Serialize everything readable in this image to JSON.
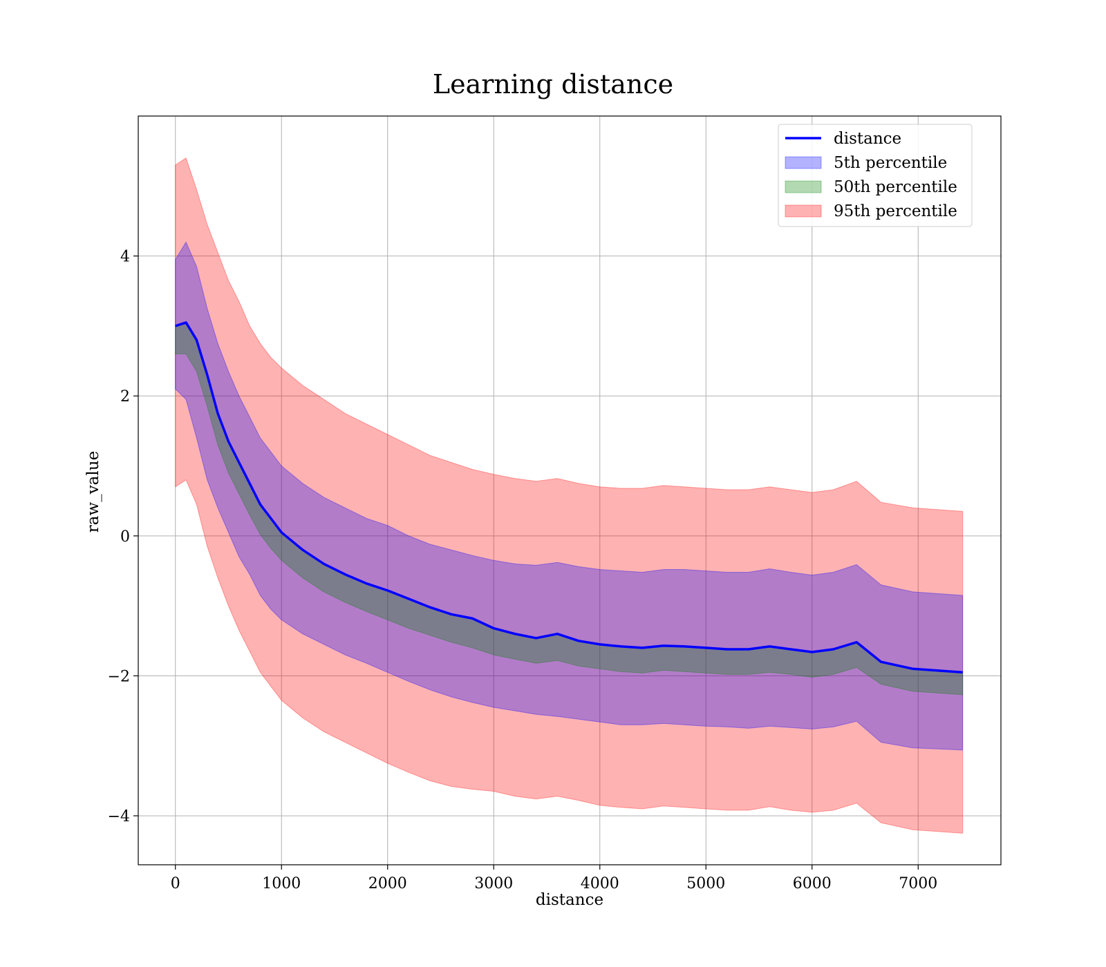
{
  "chart_data": {
    "type": "line",
    "title": "Learning distance",
    "xlabel": "distance",
    "ylabel": "raw_value",
    "xlim": [
      -350,
      7780
    ],
    "ylim": [
      -4.7,
      6.0
    ],
    "xticks": [
      0,
      1000,
      2000,
      3000,
      4000,
      5000,
      6000,
      7000
    ],
    "yticks": [
      -4,
      -2,
      0,
      2,
      4
    ],
    "xtick_labels": [
      "0",
      "1000",
      "2000",
      "3000",
      "4000",
      "5000",
      "6000",
      "7000"
    ],
    "ytick_labels": [
      "−4",
      "−2",
      "0",
      "2",
      "4"
    ],
    "grid": true,
    "legend_position": "top-right",
    "x": [
      0,
      100,
      200,
      300,
      400,
      500,
      600,
      700,
      800,
      900,
      1000,
      1200,
      1400,
      1600,
      1800,
      2000,
      2200,
      2400,
      2600,
      2800,
      3000,
      3200,
      3400,
      3600,
      3800,
      4000,
      4200,
      4400,
      4600,
      4800,
      5000,
      5200,
      5400,
      5600,
      5800,
      6000,
      6200,
      6420,
      6650,
      6950,
      7420
    ],
    "series": [
      {
        "name": "distance",
        "kind": "line",
        "color": "#0000ff",
        "values": [
          3.0,
          3.05,
          2.8,
          2.3,
          1.75,
          1.35,
          1.05,
          0.75,
          0.45,
          0.25,
          0.05,
          -0.2,
          -0.4,
          -0.55,
          -0.68,
          -0.78,
          -0.9,
          -1.02,
          -1.12,
          -1.18,
          -1.32,
          -1.4,
          -1.46,
          -1.4,
          -1.5,
          -1.55,
          -1.58,
          -1.6,
          -1.57,
          -1.58,
          -1.6,
          -1.62,
          -1.62,
          -1.58,
          -1.62,
          -1.66,
          -1.62,
          -1.52,
          -1.8,
          -1.9,
          -1.95
        ]
      },
      {
        "name": "5th percentile",
        "kind": "band",
        "color": "#0000ff",
        "lower": [
          2.1,
          1.95,
          1.4,
          0.8,
          0.4,
          0.05,
          -0.3,
          -0.55,
          -0.85,
          -1.05,
          -1.2,
          -1.4,
          -1.55,
          -1.7,
          -1.82,
          -1.95,
          -2.08,
          -2.2,
          -2.3,
          -2.38,
          -2.45,
          -2.5,
          -2.55,
          -2.58,
          -2.62,
          -2.66,
          -2.7,
          -2.7,
          -2.68,
          -2.7,
          -2.72,
          -2.73,
          -2.75,
          -2.72,
          -2.74,
          -2.76,
          -2.73,
          -2.65,
          -2.95,
          -3.03,
          -3.06
        ],
        "upper": [
          3.95,
          4.2,
          3.85,
          3.25,
          2.75,
          2.35,
          2.0,
          1.7,
          1.4,
          1.2,
          1.0,
          0.75,
          0.55,
          0.4,
          0.25,
          0.15,
          0.0,
          -0.12,
          -0.2,
          -0.28,
          -0.35,
          -0.4,
          -0.42,
          -0.38,
          -0.44,
          -0.48,
          -0.5,
          -0.52,
          -0.48,
          -0.48,
          -0.5,
          -0.52,
          -0.52,
          -0.47,
          -0.52,
          -0.56,
          -0.52,
          -0.41,
          -0.7,
          -0.8,
          -0.85
        ]
      },
      {
        "name": "50th percentile",
        "kind": "band",
        "color": "#008000",
        "lower": [
          2.6,
          2.6,
          2.35,
          1.85,
          1.3,
          0.9,
          0.6,
          0.3,
          0.02,
          -0.18,
          -0.35,
          -0.6,
          -0.8,
          -0.95,
          -1.08,
          -1.2,
          -1.32,
          -1.42,
          -1.52,
          -1.6,
          -1.7,
          -1.76,
          -1.82,
          -1.78,
          -1.86,
          -1.9,
          -1.94,
          -1.96,
          -1.92,
          -1.94,
          -1.96,
          -1.98,
          -1.98,
          -1.95,
          -1.98,
          -2.02,
          -1.98,
          -1.88,
          -2.12,
          -2.22,
          -2.27
        ]
      },
      {
        "name": "95th percentile",
        "kind": "band",
        "color": "#ff0000",
        "lower": [
          0.7,
          0.8,
          0.45,
          -0.15,
          -0.6,
          -1.0,
          -1.35,
          -1.65,
          -1.95,
          -2.15,
          -2.35,
          -2.6,
          -2.8,
          -2.95,
          -3.1,
          -3.25,
          -3.38,
          -3.5,
          -3.58,
          -3.62,
          -3.65,
          -3.72,
          -3.76,
          -3.72,
          -3.78,
          -3.85,
          -3.88,
          -3.9,
          -3.86,
          -3.88,
          -3.9,
          -3.92,
          -3.92,
          -3.87,
          -3.92,
          -3.95,
          -3.92,
          -3.82,
          -4.1,
          -4.2,
          -4.25
        ],
        "upper": [
          5.3,
          5.4,
          4.95,
          4.45,
          4.05,
          3.65,
          3.35,
          3.0,
          2.75,
          2.55,
          2.4,
          2.15,
          1.95,
          1.75,
          1.6,
          1.45,
          1.3,
          1.15,
          1.05,
          0.95,
          0.88,
          0.82,
          0.78,
          0.82,
          0.75,
          0.7,
          0.68,
          0.68,
          0.72,
          0.7,
          0.68,
          0.66,
          0.66,
          0.7,
          0.66,
          0.62,
          0.66,
          0.78,
          0.48,
          0.4,
          0.35
        ]
      }
    ]
  },
  "colors": {
    "line": "#0000ff",
    "band_5": "rgba(0,0,255,0.3)",
    "band_50": "rgba(0,128,0,0.3)",
    "band_95": "rgba(255,0,0,0.3)",
    "grid": "#b0b0b0"
  }
}
